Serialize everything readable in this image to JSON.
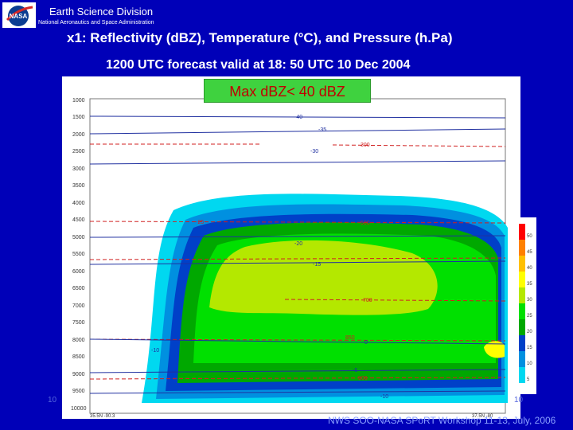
{
  "header": {
    "org": "Earth Science Division",
    "org_sub": "National Aeronautics and Space Administration",
    "logo_text": "NASA"
  },
  "title": "x1: Reflectivity (dBZ), Temperature (°C), and Pressure (h.Pa)",
  "subtitle": "1200 UTC forecast valid at 18: 50 UTC 10 Dec 2004",
  "badge": "Max dBZ< 40 dBZ",
  "plot": {
    "y_ticks": [
      "1000",
      "1500",
      "2000",
      "2500",
      "3000",
      "3500",
      "4000",
      "4500",
      "5000",
      "5500",
      "6000",
      "6500",
      "7000",
      "7500",
      "8000",
      "8500",
      "9000",
      "9500",
      "10000"
    ],
    "x_tick_left": "35.5N -90.3",
    "x_tick_right": "37.5N -80",
    "contour_labels": [
      "-40",
      "-35",
      "-30",
      "300",
      "-25",
      "-20",
      "500",
      "-15",
      "700",
      "-10",
      "850",
      "0",
      "-5",
      "900",
      "-10"
    ],
    "colorbar_labels": [
      "50",
      "45",
      "40",
      "35",
      "30",
      "25",
      "20",
      "15",
      "10",
      "5"
    ],
    "colors": {
      "bg": "#ffffff",
      "c5": "#00d8f0",
      "c10": "#0090e0",
      "c15": "#0040c8",
      "c20": "#00a800",
      "c25": "#00e000",
      "c30": "#b4e800",
      "c35": "#ffff00",
      "c40": "#ffc000",
      "c45": "#ff8000",
      "c50": "#ff0000"
    }
  },
  "footer": "NWS SOO-NASA SPoRT Workshop 11-13, July, 2006",
  "left_number": "10",
  "right_number": "10"
}
